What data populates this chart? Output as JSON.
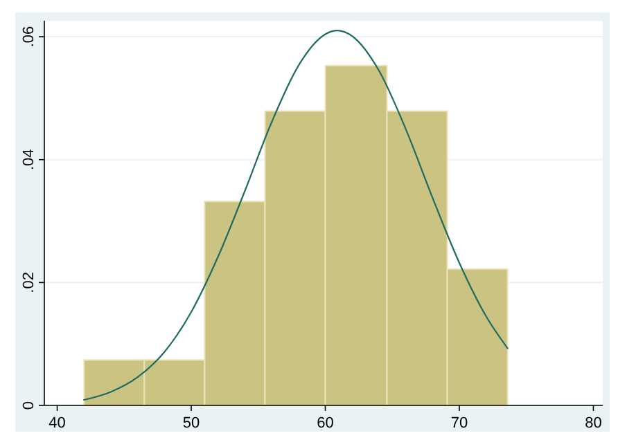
{
  "chart_data": {
    "type": "histogram",
    "xlim": [
      39.04,
      80.7
    ],
    "ylim": [
      0,
      0.0626
    ],
    "xticks": [
      40,
      50,
      60,
      70,
      80
    ],
    "yticks": [
      {
        "value": 0,
        "label": "0"
      },
      {
        "value": 0.02,
        "label": ".02"
      },
      {
        "value": 0.04,
        "label": ".04"
      },
      {
        "value": 0.06,
        "label": ".06"
      }
    ],
    "grid": "y",
    "series": [
      {
        "color": "#cbc382",
        "bins": [
          42,
          46.5,
          51,
          55.5,
          60,
          64.6,
          69.1,
          73.6
        ],
        "values": [
          0.0074,
          0.0074,
          0.0332,
          0.0479,
          0.0553,
          0.0479,
          0.0222
        ]
      },
      {
        "type": "line",
        "color": "#1e6b62",
        "x": [
          42,
          44,
          46,
          48,
          50,
          52,
          54,
          56,
          58,
          60,
          60.9,
          62,
          64,
          66,
          68,
          70,
          72,
          73.6
        ],
        "values": [
          0.0009,
          0.0022,
          0.0046,
          0.0087,
          0.0152,
          0.0242,
          0.0349,
          0.0461,
          0.0553,
          0.0604,
          0.061,
          0.0601,
          0.0545,
          0.045,
          0.0338,
          0.0232,
          0.0145,
          0.0093
        ]
      }
    ]
  }
}
